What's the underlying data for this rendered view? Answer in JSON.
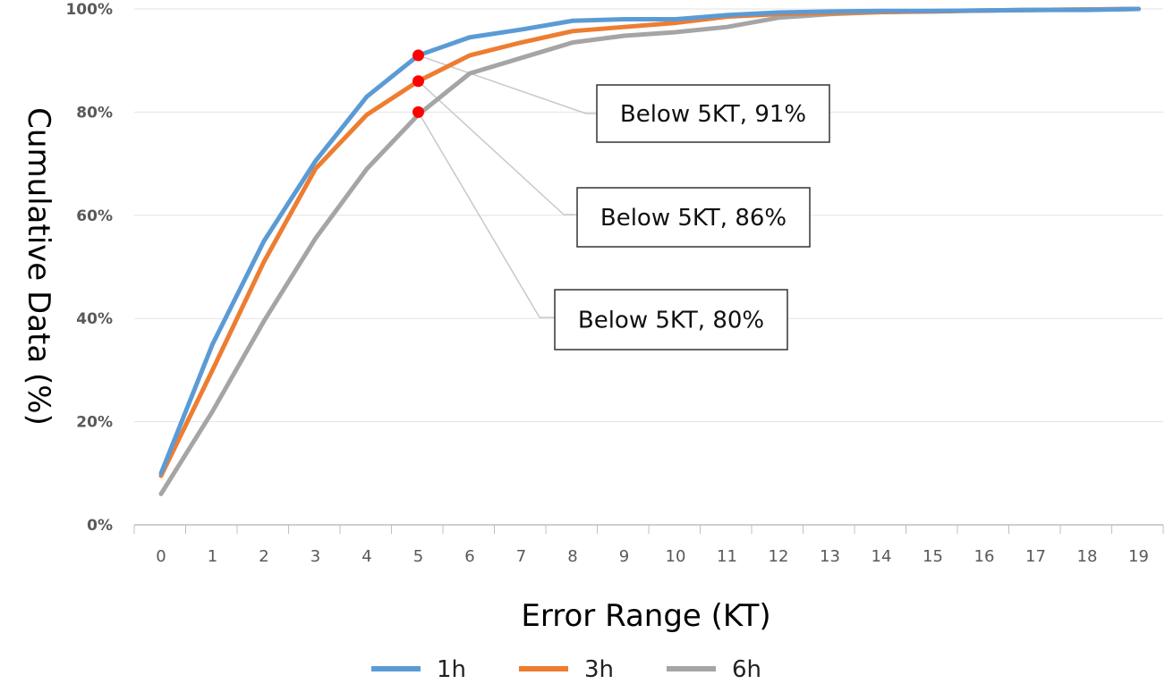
{
  "chart_data": {
    "type": "line",
    "title": "",
    "xlabel": "Error Range (KT)",
    "ylabel": "Cumulative Data (%)",
    "x": [
      0,
      1,
      2,
      3,
      4,
      5,
      6,
      7,
      8,
      9,
      10,
      11,
      12,
      13,
      14,
      15,
      16,
      17,
      18,
      19
    ],
    "ylim": [
      0,
      100
    ],
    "yticks": [
      "0%",
      "20%",
      "40%",
      "60%",
      "80%",
      "100%"
    ],
    "grid": "horizontal",
    "legend": "bottom",
    "series": [
      {
        "name": "1h",
        "color": "#5B9BD5",
        "values": [
          10,
          35,
          55,
          70.5,
          83,
          91,
          94.5,
          96,
          97.7,
          98,
          98,
          98.8,
          99.3,
          99.5,
          99.6,
          99.6,
          99.7,
          99.8,
          99.8,
          100
        ]
      },
      {
        "name": "3h",
        "color": "#ED7D31",
        "values": [
          9.5,
          30,
          51,
          69,
          79.5,
          86,
          91,
          93.5,
          95.7,
          96.5,
          97.3,
          98.5,
          99,
          99.2,
          99.4,
          99.5,
          99.7,
          99.8,
          99.9,
          100
        ]
      },
      {
        "name": "6h",
        "color": "#A5A5A5",
        "values": [
          6,
          22,
          39.5,
          55.5,
          69,
          79.5,
          87.5,
          90.5,
          93.5,
          94.8,
          95.5,
          96.5,
          98.3,
          99,
          99.4,
          99.6,
          99.7,
          99.8,
          99.9,
          100
        ]
      }
    ],
    "markers": [
      {
        "series": "1h",
        "x": 5,
        "y": 91,
        "color": "#FF0000"
      },
      {
        "series": "3h",
        "x": 5,
        "y": 86,
        "color": "#FF0000"
      },
      {
        "series": "6h",
        "x": 5,
        "y": 80,
        "color": "#FF0000"
      }
    ],
    "annotations": [
      {
        "text": "Below 5KT, 91%",
        "series": "1h",
        "x": 5,
        "y": 91
      },
      {
        "text": "Below 5KT, 86%",
        "series": "3h",
        "x": 5,
        "y": 86
      },
      {
        "text": "Below 5KT, 80%",
        "series": "6h",
        "x": 5,
        "y": 80
      }
    ]
  }
}
